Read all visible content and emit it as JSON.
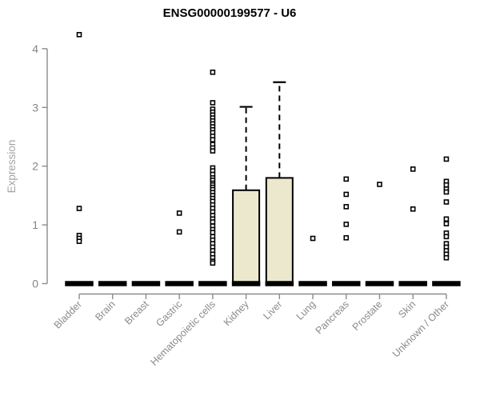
{
  "title": "ENSG00000199577 - U6",
  "chart_data": {
    "type": "boxplot",
    "title": "ENSG00000199577 - U6",
    "xlabel": "",
    "ylabel": "Expression",
    "ylim": [
      0,
      4.3
    ],
    "yticks": [
      0,
      1,
      2,
      3,
      4
    ],
    "grid": false,
    "legend": null,
    "categories": [
      "Bladder",
      "Brain",
      "Breast",
      "Gastric",
      "Hematopoietic cells",
      "Kidney",
      "Liver",
      "Lung",
      "Pancreas",
      "Prostate",
      "Skin",
      "Unknown / Other"
    ],
    "boxes": [
      {
        "category": "Bladder",
        "q1": 0,
        "median": 0,
        "q3": 0,
        "whisker_low": 0,
        "whisker_high": 0,
        "outliers": [
          4.24,
          1.28,
          0.82,
          0.77,
          0.72
        ]
      },
      {
        "category": "Brain",
        "q1": 0,
        "median": 0,
        "q3": 0,
        "whisker_low": 0,
        "whisker_high": 0,
        "outliers": []
      },
      {
        "category": "Breast",
        "q1": 0,
        "median": 0,
        "q3": 0,
        "whisker_low": 0,
        "whisker_high": 0,
        "outliers": []
      },
      {
        "category": "Gastric",
        "q1": 0,
        "median": 0,
        "q3": 0,
        "whisker_low": 0,
        "whisker_high": 0,
        "outliers": [
          1.2,
          0.88
        ]
      },
      {
        "category": "Hematopoietic cells",
        "q1": 0,
        "median": 0,
        "q3": 0,
        "whisker_low": 0,
        "whisker_high": 0,
        "outliers": [
          3.6,
          3.08,
          2.97,
          2.92,
          2.87,
          2.82,
          2.77,
          2.72,
          2.67,
          2.62,
          2.57,
          2.51,
          2.45,
          2.37,
          2.31,
          2.26,
          1.97,
          1.92,
          1.86,
          1.8,
          1.76,
          1.71,
          1.68,
          1.64,
          1.6,
          1.55,
          1.5,
          1.45,
          1.4,
          1.34,
          1.28,
          1.22,
          1.16,
          1.1,
          1.05,
          0.98,
          0.92,
          0.87,
          0.8,
          0.74,
          0.68,
          0.62,
          0.56,
          0.5,
          0.44,
          0.38,
          0.35
        ]
      },
      {
        "category": "Kidney",
        "q1": 0,
        "median": 0,
        "q3": 1.59,
        "whisker_low": 0,
        "whisker_high": 3.01,
        "outliers": []
      },
      {
        "category": "Liver",
        "q1": 0,
        "median": 0,
        "q3": 1.8,
        "whisker_low": 0,
        "whisker_high": 3.43,
        "outliers": []
      },
      {
        "category": "Lung",
        "q1": 0,
        "median": 0,
        "q3": 0,
        "whisker_low": 0,
        "whisker_high": 0,
        "outliers": [
          0.77
        ]
      },
      {
        "category": "Pancreas",
        "q1": 0,
        "median": 0,
        "q3": 0,
        "whisker_low": 0,
        "whisker_high": 0,
        "outliers": [
          1.78,
          1.52,
          1.31,
          1.01,
          0.78
        ]
      },
      {
        "category": "Prostate",
        "q1": 0,
        "median": 0,
        "q3": 0,
        "whisker_low": 0,
        "whisker_high": 0,
        "outliers": [
          1.69
        ]
      },
      {
        "category": "Skin",
        "q1": 0,
        "median": 0,
        "q3": 0,
        "whisker_low": 0,
        "whisker_high": 0,
        "outliers": [
          1.95,
          1.27
        ]
      },
      {
        "category": "Unknown / Other",
        "q1": 0,
        "median": 0,
        "q3": 0,
        "whisker_low": 0,
        "whisker_high": 0,
        "outliers": [
          2.12,
          1.74,
          1.68,
          1.61,
          1.56,
          1.39,
          1.1,
          1.02,
          0.86,
          0.8,
          0.68,
          0.62,
          0.56,
          0.5,
          0.44
        ]
      }
    ],
    "colors": {
      "box_fill": "#ece8ce",
      "box_border": "#000000",
      "median": "#000000",
      "whisker": "#000000",
      "outlier": "#000000",
      "axis": "#8c8c8c",
      "tick_label": "#858585",
      "axis_title": "#a3a3a3",
      "title": "#000000",
      "background": "#ffffff"
    }
  }
}
